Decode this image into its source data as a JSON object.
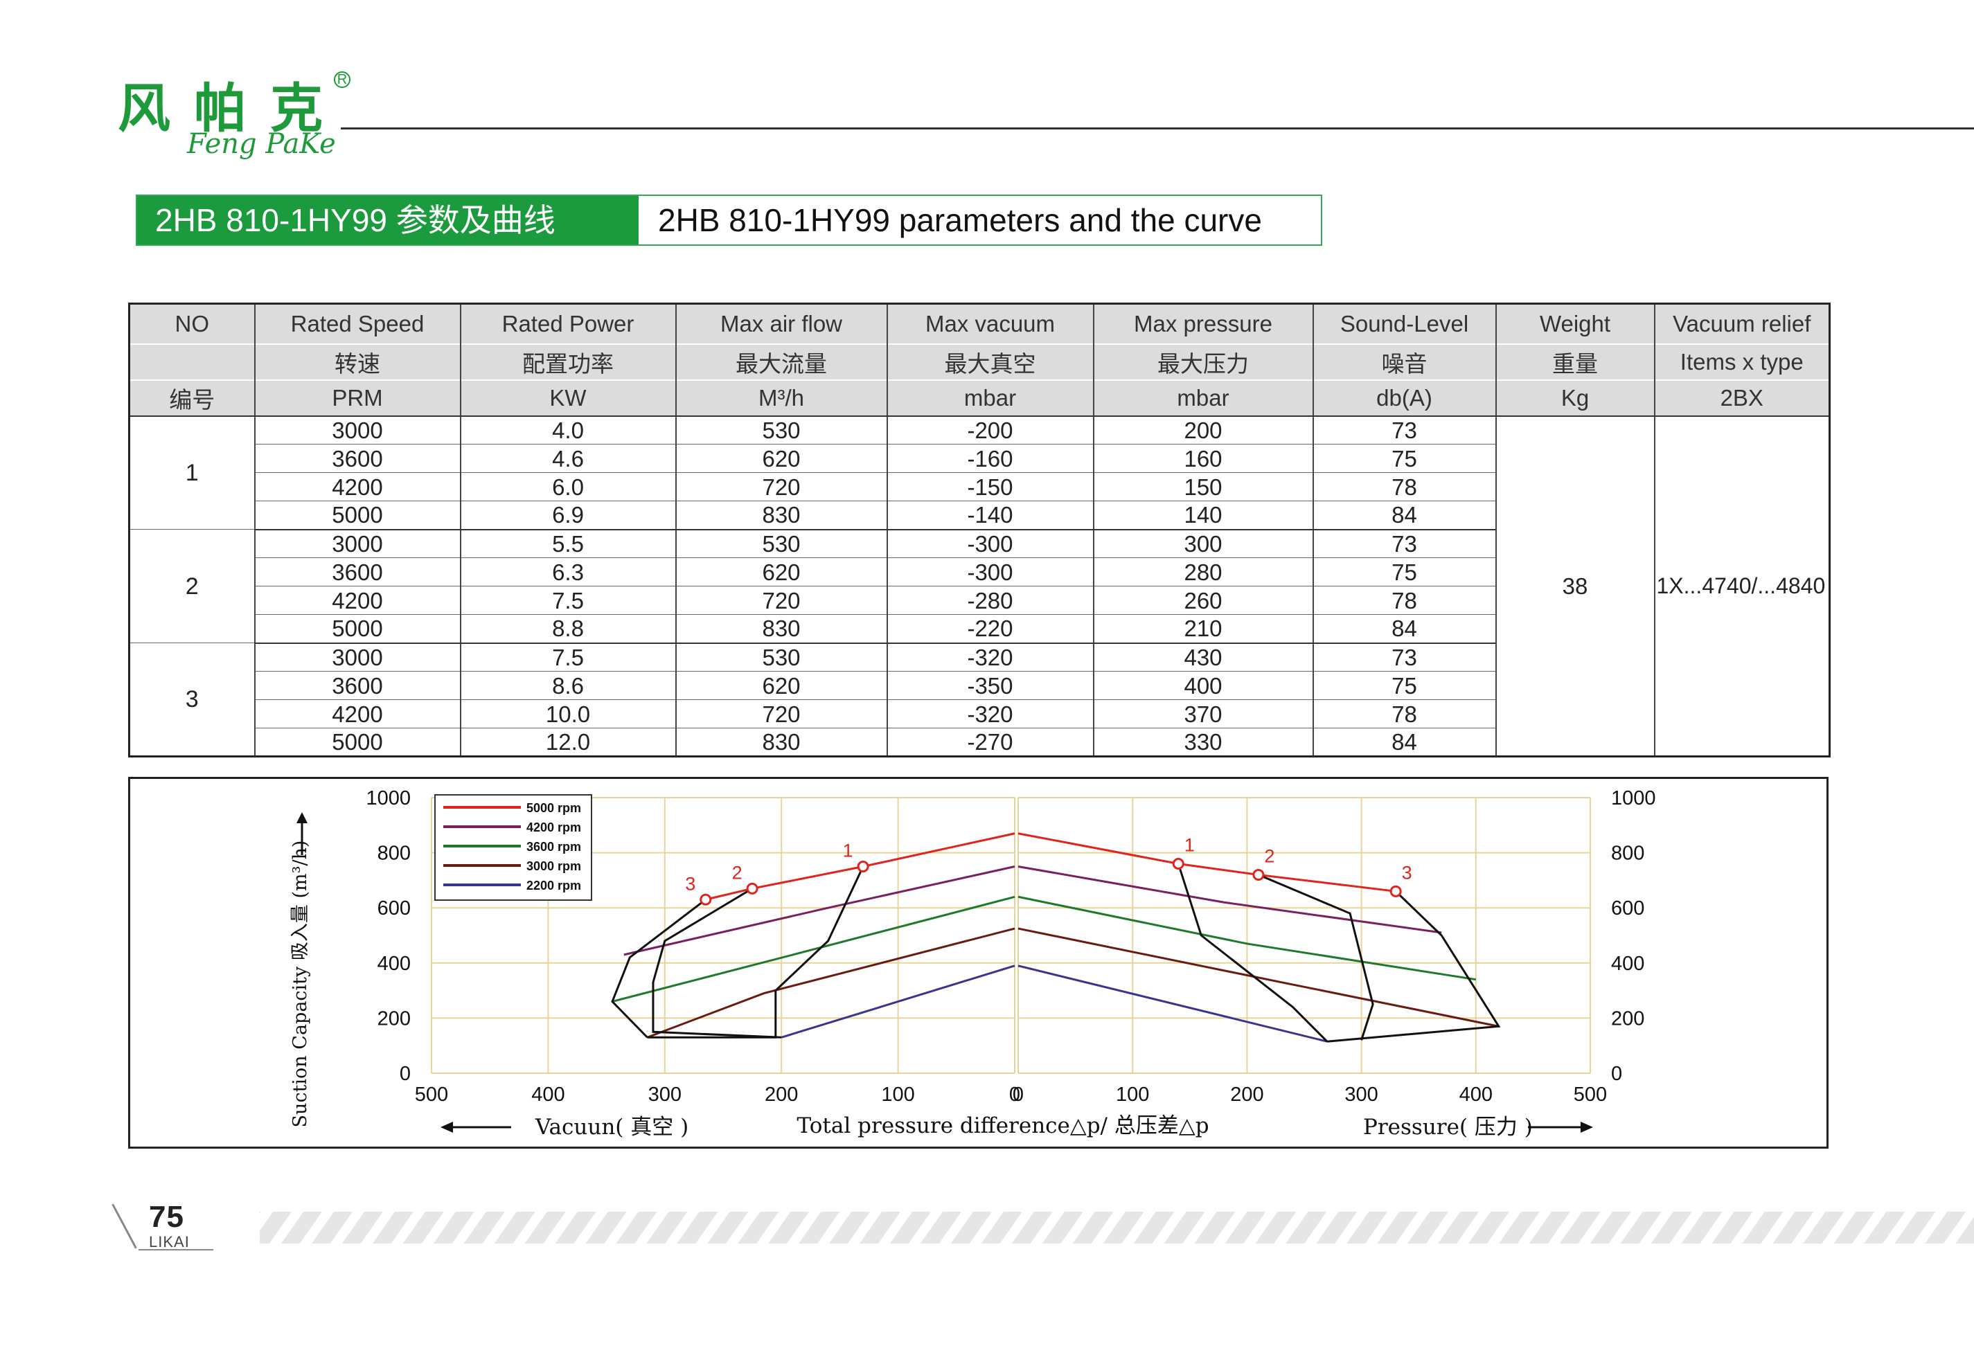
{
  "brand": {
    "name_cn": "风帕克",
    "name_en": "Feng PaKe",
    "registered_mark": "R"
  },
  "title": {
    "cn": "2HB 810-1HY99 参数及曲线",
    "en": "2HB 810-1HY99 parameters and the curve"
  },
  "table": {
    "headers": [
      {
        "en": "NO",
        "cn": "",
        "unit": "编号"
      },
      {
        "en": "Rated Speed",
        "cn": "转速",
        "unit": "PRM"
      },
      {
        "en": "Rated Power",
        "cn": "配置功率",
        "unit": "KW"
      },
      {
        "en": "Max air flow",
        "cn": "最大流量",
        "unit": "M³/h"
      },
      {
        "en": "Max vacuum",
        "cn": "最大真空",
        "unit": "mbar"
      },
      {
        "en": "Max pressure",
        "cn": "最大压力",
        "unit": "mbar"
      },
      {
        "en": "Sound-Level",
        "cn": "噪音",
        "unit": "db(A)"
      },
      {
        "en": "Weight",
        "cn": "重量",
        "unit": "Kg"
      },
      {
        "en": "Vacuum relief",
        "cn": "Items x type",
        "unit": "2BX"
      }
    ],
    "groups": [
      {
        "no": "1",
        "rows": [
          {
            "speed": "3000",
            "power": "4.0",
            "flow": "530",
            "vacuum": "-200",
            "pressure": "200",
            "sound": "73"
          },
          {
            "speed": "3600",
            "power": "4.6",
            "flow": "620",
            "vacuum": "-160",
            "pressure": "160",
            "sound": "75"
          },
          {
            "speed": "4200",
            "power": "6.0",
            "flow": "720",
            "vacuum": "-150",
            "pressure": "150",
            "sound": "78"
          },
          {
            "speed": "5000",
            "power": "6.9",
            "flow": "830",
            "vacuum": "-140",
            "pressure": "140",
            "sound": "84"
          }
        ]
      },
      {
        "no": "2",
        "rows": [
          {
            "speed": "3000",
            "power": "5.5",
            "flow": "530",
            "vacuum": "-300",
            "pressure": "300",
            "sound": "73"
          },
          {
            "speed": "3600",
            "power": "6.3",
            "flow": "620",
            "vacuum": "-300",
            "pressure": "280",
            "sound": "75"
          },
          {
            "speed": "4200",
            "power": "7.5",
            "flow": "720",
            "vacuum": "-280",
            "pressure": "260",
            "sound": "78"
          },
          {
            "speed": "5000",
            "power": "8.8",
            "flow": "830",
            "vacuum": "-220",
            "pressure": "210",
            "sound": "84"
          }
        ]
      },
      {
        "no": "3",
        "rows": [
          {
            "speed": "3000",
            "power": "7.5",
            "flow": "530",
            "vacuum": "-320",
            "pressure": "430",
            "sound": "73"
          },
          {
            "speed": "3600",
            "power": "8.6",
            "flow": "620",
            "vacuum": "-350",
            "pressure": "400",
            "sound": "75"
          },
          {
            "speed": "4200",
            "power": "10.0",
            "flow": "720",
            "vacuum": "-320",
            "pressure": "370",
            "sound": "78"
          },
          {
            "speed": "5000",
            "power": "12.0",
            "flow": "830",
            "vacuum": "-270",
            "pressure": "330",
            "sound": "84"
          }
        ]
      }
    ],
    "weight": "38",
    "relief": "1X...4740/...4840"
  },
  "chart_data": {
    "type": "line",
    "ylabel": "Suction Capacity 吸入量 (m³/h)",
    "xlabel_center": "Total pressure difference△p/ 总压差△p",
    "xlabel_left": "Vacuun( 真空 )",
    "xlabel_right": "Pressure( 压力 )",
    "y_ticks": [
      "0",
      "200",
      "400",
      "600",
      "800",
      "1000"
    ],
    "x_ticks_vacuum": [
      "500",
      "400",
      "300",
      "200",
      "100",
      "0"
    ],
    "x_ticks_pressure": [
      "0",
      "100",
      "200",
      "300",
      "400",
      "500"
    ],
    "xlim": [
      0,
      500
    ],
    "ylim": [
      0,
      1000
    ],
    "grid": true,
    "legend_position": "top-left",
    "series": [
      {
        "name": "5000 rpm",
        "color": "#e0241b",
        "vacuum": [
          [
            0,
            870
          ],
          [
            130,
            750
          ],
          [
            225,
            670
          ],
          [
            265,
            630
          ]
        ],
        "pressure": [
          [
            0,
            870
          ],
          [
            140,
            760
          ],
          [
            210,
            720
          ],
          [
            330,
            660
          ]
        ]
      },
      {
        "name": "4200 rpm",
        "color": "#7a2060",
        "vacuum": [
          [
            0,
            750
          ],
          [
            160,
            600
          ],
          [
            335,
            430
          ]
        ],
        "pressure": [
          [
            0,
            750
          ],
          [
            180,
            620
          ],
          [
            370,
            510
          ]
        ]
      },
      {
        "name": "3600 rpm",
        "color": "#1e7a2a",
        "vacuum": [
          [
            0,
            640
          ],
          [
            190,
            430
          ],
          [
            345,
            260
          ]
        ],
        "pressure": [
          [
            0,
            640
          ],
          [
            200,
            470
          ],
          [
            400,
            340
          ]
        ]
      },
      {
        "name": "3000 rpm",
        "color": "#6a1a10",
        "vacuum": [
          [
            0,
            525
          ],
          [
            215,
            290
          ],
          [
            315,
            130
          ]
        ],
        "pressure": [
          [
            0,
            525
          ],
          [
            230,
            330
          ],
          [
            420,
            170
          ]
        ]
      },
      {
        "name": "2200 rpm",
        "color": "#3a3490",
        "vacuum": [
          [
            0,
            390
          ],
          [
            200,
            130
          ]
        ],
        "pressure": [
          [
            0,
            390
          ],
          [
            270,
            115
          ]
        ]
      }
    ],
    "operating_limits": [
      {
        "label": "1",
        "vacuum": [
          [
            130,
            750
          ],
          [
            160,
            480
          ],
          [
            205,
            300
          ],
          [
            205,
            130
          ],
          [
            315,
            130
          ]
        ],
        "pressure": [
          [
            140,
            760
          ],
          [
            160,
            500
          ],
          [
            240,
            240
          ],
          [
            270,
            115
          ]
        ]
      },
      {
        "label": "2",
        "vacuum": [
          [
            225,
            670
          ],
          [
            300,
            480
          ],
          [
            310,
            330
          ],
          [
            310,
            150
          ],
          [
            200,
            130
          ]
        ],
        "pressure": [
          [
            210,
            720
          ],
          [
            290,
            580
          ],
          [
            310,
            250
          ],
          [
            300,
            120
          ]
        ]
      },
      {
        "label": "3",
        "vacuum": [
          [
            265,
            630
          ],
          [
            330,
            420
          ],
          [
            345,
            260
          ],
          [
            315,
            130
          ]
        ],
        "pressure": [
          [
            330,
            660
          ],
          [
            370,
            500
          ],
          [
            420,
            170
          ],
          [
            270,
            115
          ]
        ]
      }
    ]
  },
  "footer": {
    "page_number": "75",
    "brand": "LIKAI"
  }
}
